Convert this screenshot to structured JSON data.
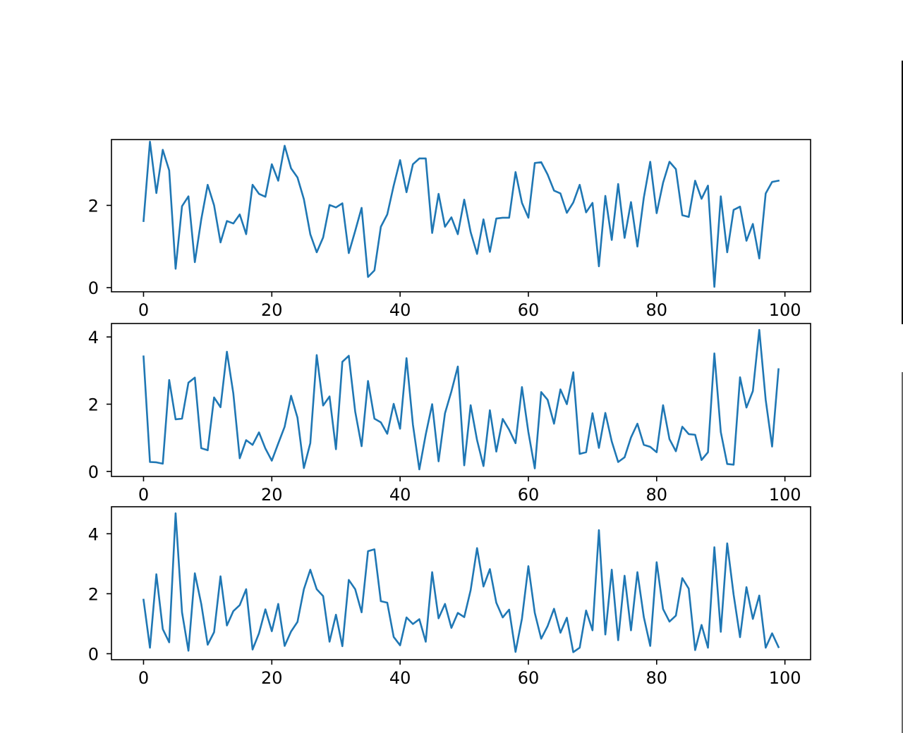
{
  "theme": {
    "line_color": "#1f77b4"
  },
  "chart_data": [
    {
      "type": "line",
      "x_start": 0,
      "x_step": 1,
      "xlim": [
        -5,
        104
      ],
      "ylim": [
        -0.1,
        3.6
      ],
      "xticks": [
        0,
        20,
        40,
        60,
        80,
        100
      ],
      "yticks": [
        0,
        2
      ],
      "xtick_labels": [
        "0",
        "20",
        "40",
        "60",
        "80",
        "100"
      ],
      "ytick_labels": [
        "0",
        "2"
      ],
      "values": [
        1.62,
        3.55,
        2.3,
        3.35,
        2.85,
        0.46,
        1.98,
        2.22,
        0.62,
        1.66,
        2.5,
        2.0,
        1.1,
        1.62,
        1.56,
        1.78,
        1.3,
        2.5,
        2.28,
        2.21,
        3.0,
        2.6,
        3.45,
        2.9,
        2.68,
        2.15,
        1.3,
        0.86,
        1.22,
        2.01,
        1.95,
        2.05,
        0.84,
        1.38,
        1.94,
        0.26,
        0.42,
        1.48,
        1.78,
        2.48,
        3.1,
        2.32,
        3.0,
        3.14,
        3.14,
        1.33,
        2.28,
        1.48,
        1.71,
        1.3,
        2.14,
        1.35,
        0.82,
        1.66,
        0.87,
        1.68,
        1.7,
        1.7,
        2.81,
        2.06,
        1.7,
        3.03,
        3.05,
        2.75,
        2.36,
        2.29,
        1.82,
        2.07,
        2.5,
        1.83,
        2.06,
        0.52,
        2.23,
        1.16,
        2.52,
        1.21,
        2.08,
        1.0,
        2.19,
        3.06,
        1.81,
        2.55,
        3.06,
        2.88,
        1.76,
        1.72,
        2.6,
        2.16,
        2.48,
        0.02,
        2.22,
        0.86,
        1.89,
        1.97,
        1.14,
        1.55,
        0.71,
        2.29,
        2.57,
        2.6
      ]
    },
    {
      "type": "line",
      "x_start": 0,
      "x_step": 1,
      "xlim": [
        -5,
        104
      ],
      "ylim": [
        -0.15,
        4.4
      ],
      "xticks": [
        0,
        20,
        40,
        60,
        80,
        100
      ],
      "yticks": [
        0,
        2,
        4
      ],
      "xtick_labels": [
        "0",
        "20",
        "40",
        "60",
        "80",
        "100"
      ],
      "ytick_labels": [
        "0",
        "2",
        "4"
      ],
      "values": [
        3.42,
        0.28,
        0.27,
        0.23,
        2.72,
        1.55,
        1.57,
        2.64,
        2.79,
        0.69,
        0.63,
        2.2,
        1.91,
        3.56,
        2.32,
        0.39,
        0.93,
        0.79,
        1.16,
        0.68,
        0.32,
        0.83,
        1.33,
        2.25,
        1.6,
        0.1,
        0.84,
        3.46,
        1.96,
        2.23,
        0.66,
        3.26,
        3.44,
        1.78,
        0.75,
        2.69,
        1.57,
        1.46,
        1.12,
        2.01,
        1.27,
        3.37,
        1.39,
        0.06,
        1.1,
        2.0,
        0.3,
        1.73,
        2.38,
        3.12,
        0.18,
        1.97,
        0.93,
        0.16,
        1.82,
        0.59,
        1.56,
        1.24,
        0.84,
        2.51,
        1.17,
        0.09,
        2.36,
        2.13,
        1.42,
        2.44,
        2.0,
        2.95,
        0.52,
        0.57,
        1.73,
        0.7,
        1.74,
        0.89,
        0.28,
        0.42,
        1.01,
        1.42,
        0.79,
        0.73,
        0.57,
        1.97,
        0.96,
        0.6,
        1.33,
        1.11,
        1.09,
        0.34,
        0.57,
        3.51,
        1.17,
        0.22,
        0.2,
        2.8,
        1.9,
        2.39,
        4.21,
        2.13,
        0.74,
        3.04
      ]
    },
    {
      "type": "line",
      "x_start": 0,
      "x_step": 1,
      "xlim": [
        -5,
        104
      ],
      "ylim": [
        -0.2,
        4.9
      ],
      "xticks": [
        0,
        20,
        40,
        60,
        80,
        100
      ],
      "yticks": [
        0,
        2,
        4
      ],
      "xtick_labels": [
        "0",
        "20",
        "40",
        "60",
        "80",
        "100"
      ],
      "ytick_labels": [
        "0",
        "2",
        "4"
      ],
      "values": [
        1.8,
        0.2,
        2.65,
        0.82,
        0.38,
        4.68,
        1.38,
        0.1,
        2.68,
        1.66,
        0.3,
        0.72,
        2.58,
        0.94,
        1.42,
        1.62,
        2.15,
        0.14,
        0.68,
        1.48,
        0.75,
        1.66,
        0.26,
        0.74,
        1.06,
        2.15,
        2.8,
        2.15,
        1.92,
        0.4,
        1.3,
        0.25,
        2.46,
        2.15,
        1.38,
        3.42,
        3.48,
        1.75,
        1.7,
        0.56,
        0.28,
        1.21,
        0.99,
        1.15,
        0.4,
        2.72,
        1.18,
        1.66,
        0.86,
        1.36,
        1.22,
        2.12,
        3.52,
        2.24,
        2.82,
        1.7,
        1.21,
        1.47,
        0.06,
        1.17,
        2.92,
        1.36,
        0.5,
        0.92,
        1.5,
        0.7,
        1.2,
        0.05,
        0.2,
        1.44,
        0.78,
        4.12,
        0.64,
        2.8,
        0.45,
        2.6,
        0.78,
        2.72,
        1.22,
        0.26,
        3.05,
        1.49,
        1.07,
        1.27,
        2.52,
        2.17,
        0.12,
        0.96,
        0.2,
        3.55,
        0.73,
        3.68,
        1.97,
        0.55,
        2.22,
        1.16,
        1.94,
        0.2,
        0.68,
        0.22
      ]
    }
  ]
}
